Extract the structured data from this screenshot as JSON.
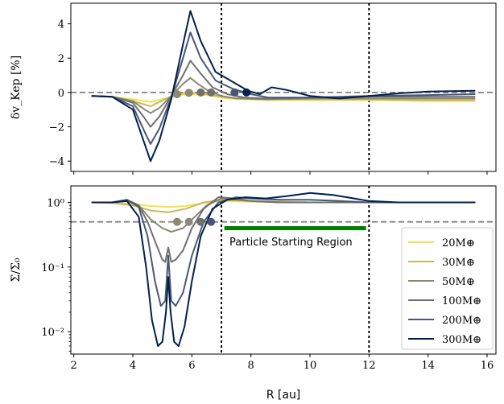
{
  "chart_data": [
    {
      "type": "line",
      "panel": "top",
      "ylabel": "δv_Kep [%]",
      "xlim": [
        1.9,
        16.3
      ],
      "ylim": [
        -4.6,
        5.2
      ],
      "yticks": [
        {
          "v": 4,
          "label": "4"
        },
        {
          "v": 2,
          "label": "2"
        },
        {
          "v": 0,
          "label": "0"
        },
        {
          "v": -2,
          "label": "−2"
        },
        {
          "v": -4,
          "label": "−4"
        }
      ],
      "xticks": [
        2,
        4,
        6,
        8,
        10,
        12,
        14,
        16
      ],
      "reference_lines": {
        "horizontal": 0,
        "vertical": [
          7,
          12
        ]
      },
      "series": [
        {
          "name": "20M⊕",
          "color": "#f2e34a",
          "x": [
            2.6,
            3.3,
            4.0,
            4.6,
            5.2,
            5.8,
            6.5,
            7.2,
            8.5,
            10,
            12,
            14,
            15.6
          ],
          "y": [
            -0.2,
            -0.25,
            -0.4,
            -0.55,
            -0.3,
            -0.1,
            -0.15,
            -0.35,
            -0.45,
            -0.45,
            -0.45,
            -0.5,
            -0.5
          ]
        },
        {
          "name": "30M⊕",
          "color": "#cbb763",
          "x": [
            2.6,
            3.3,
            4.0,
            4.6,
            5.2,
            5.8,
            6.5,
            7.2,
            8.5,
            10,
            12,
            14,
            15.6
          ],
          "y": [
            -0.2,
            -0.25,
            -0.5,
            -0.8,
            -0.3,
            0.0,
            -0.1,
            -0.3,
            -0.4,
            -0.4,
            -0.4,
            -0.45,
            -0.45
          ]
        },
        {
          "name": "50M⊕",
          "color": "#8b8874",
          "x": [
            2.6,
            3.3,
            4.0,
            4.4,
            4.6,
            4.9,
            5.3,
            5.7,
            5.95,
            6.2,
            6.6,
            7.0,
            7.5,
            8.5,
            10,
            12,
            14,
            15.6
          ],
          "y": [
            -0.2,
            -0.25,
            -0.5,
            -1.0,
            -1.2,
            -0.9,
            -0.2,
            0.5,
            0.85,
            0.5,
            0.05,
            -0.2,
            -0.35,
            -0.4,
            -0.35,
            -0.35,
            -0.35,
            -0.35
          ]
        },
        {
          "name": "100M⊕",
          "color": "#6f6f6f",
          "x": [
            2.6,
            3.3,
            4.0,
            4.4,
            4.6,
            4.9,
            5.3,
            5.7,
            5.95,
            6.3,
            6.7,
            7.2,
            7.8,
            8.5,
            10,
            12,
            14,
            15.6
          ],
          "y": [
            -0.2,
            -0.25,
            -0.6,
            -1.5,
            -2.0,
            -1.4,
            -0.2,
            1.0,
            1.85,
            1.1,
            0.3,
            -0.1,
            -0.3,
            -0.35,
            -0.3,
            -0.25,
            -0.25,
            -0.25
          ]
        },
        {
          "name": "200M⊕",
          "color": "#4a5675",
          "x": [
            2.6,
            3.3,
            4.0,
            4.4,
            4.6,
            4.9,
            5.3,
            5.7,
            5.95,
            6.3,
            6.8,
            7.4,
            8.0,
            8.6,
            10,
            12,
            14,
            15.6
          ],
          "y": [
            -0.2,
            -0.25,
            -0.8,
            -2.3,
            -3.0,
            -2.1,
            -0.3,
            2.0,
            3.5,
            2.0,
            0.7,
            0.2,
            -0.1,
            -0.3,
            -0.3,
            -0.2,
            -0.15,
            -0.1
          ]
        },
        {
          "name": "300M⊕",
          "color": "#002050",
          "x": [
            2.6,
            3.3,
            4.0,
            4.4,
            4.6,
            4.9,
            5.3,
            5.7,
            5.95,
            6.3,
            6.8,
            7.4,
            7.9,
            8.3,
            8.7,
            9.2,
            10.0,
            11.0,
            12.0,
            13.0,
            14.0,
            15.6
          ],
          "y": [
            -0.2,
            -0.25,
            -1.0,
            -3.0,
            -4.0,
            -2.8,
            -0.4,
            2.8,
            4.75,
            3.0,
            1.2,
            0.6,
            0.1,
            -0.1,
            0.3,
            0.15,
            -0.2,
            -0.35,
            -0.2,
            -0.05,
            0.05,
            0.1
          ]
        }
      ],
      "markers": [
        {
          "x": 5.5,
          "y": -0.1,
          "color": "#8b8874"
        },
        {
          "x": 5.9,
          "y": -0.02,
          "color": "#8b8874"
        },
        {
          "x": 6.3,
          "y": 0.0,
          "color": "#6f6f6f"
        },
        {
          "x": 6.65,
          "y": 0.0,
          "color": "#6f6f6f"
        },
        {
          "x": 7.45,
          "y": 0.0,
          "color": "#4a5675"
        },
        {
          "x": 7.85,
          "y": 0.0,
          "color": "#002050"
        }
      ]
    },
    {
      "type": "line",
      "panel": "bottom",
      "yscale": "log",
      "ylabel": "Σ/Σ₀",
      "xlabel": "R [au]",
      "xlim": [
        1.9,
        16.3
      ],
      "ylim": [
        0.0045,
        1.8
      ],
      "yticks": [
        {
          "v": 1,
          "label": "10⁰"
        },
        {
          "v": 0.1,
          "label": "10⁻¹"
        },
        {
          "v": 0.01,
          "label": "10⁻²"
        }
      ],
      "xticks": [
        2,
        4,
        6,
        8,
        10,
        12,
        14,
        16
      ],
      "reference_lines": {
        "horizontal": 0.5,
        "vertical": [
          7,
          12
        ]
      },
      "annotation": {
        "text": "Particle Starting Region",
        "x_start": 7.1,
        "x_end": 11.9,
        "y": 0.4,
        "color": "#008000"
      },
      "legend": {
        "position": "lower-right"
      },
      "series": [
        {
          "name": "20M⊕",
          "color": "#f2e34a",
          "x": [
            2.6,
            3.3,
            4.0,
            4.6,
            5.2,
            5.8,
            6.4,
            7.0,
            8.0,
            10,
            12,
            14,
            15.6
          ],
          "y": [
            1.0,
            0.98,
            0.95,
            0.88,
            0.85,
            0.88,
            0.98,
            1.05,
            1.02,
            1.0,
            1.0,
            1.0,
            1.0
          ]
        },
        {
          "name": "30M⊕",
          "color": "#cbb763",
          "x": [
            2.6,
            3.3,
            4.0,
            4.6,
            5.2,
            5.8,
            6.4,
            7.0,
            8.0,
            10,
            12,
            14,
            15.6
          ],
          "y": [
            1.0,
            0.98,
            0.9,
            0.75,
            0.7,
            0.8,
            1.0,
            1.1,
            1.05,
            1.0,
            1.0,
            1.0,
            1.0
          ]
        },
        {
          "name": "50M⊕",
          "color": "#8b8874",
          "x": [
            2.6,
            3.3,
            3.8,
            4.2,
            4.6,
            5.0,
            5.3,
            5.7,
            6.1,
            6.5,
            7.0,
            7.5,
            8.0,
            9.0,
            10,
            12,
            14,
            15.6
          ],
          "y": [
            1.0,
            1.0,
            1.05,
            0.9,
            0.55,
            0.4,
            0.35,
            0.4,
            0.6,
            0.9,
            1.15,
            1.1,
            1.05,
            1.0,
            1.0,
            1.0,
            1.0,
            1.0
          ]
        },
        {
          "name": "100M⊕",
          "color": "#6f6f6f",
          "x": [
            2.6,
            3.3,
            3.8,
            4.2,
            4.5,
            4.8,
            5.0,
            5.1,
            5.2,
            5.3,
            5.45,
            5.7,
            6.0,
            6.4,
            6.9,
            7.5,
            8.0,
            9.0,
            10,
            12,
            14,
            15.6
          ],
          "y": [
            1.0,
            1.0,
            1.1,
            0.9,
            0.5,
            0.22,
            0.13,
            0.12,
            0.2,
            0.12,
            0.13,
            0.18,
            0.4,
            0.8,
            1.2,
            1.15,
            1.05,
            1.0,
            1.0,
            1.0,
            1.0,
            1.0
          ]
        },
        {
          "name": "200M⊕",
          "color": "#4a5675",
          "x": [
            2.6,
            3.3,
            3.8,
            4.2,
            4.5,
            4.75,
            4.95,
            5.1,
            5.2,
            5.3,
            5.45,
            5.7,
            6.0,
            6.4,
            6.9,
            7.5,
            8.0,
            9.0,
            10,
            11,
            12,
            14,
            15.6
          ],
          "y": [
            1.0,
            1.0,
            1.1,
            0.85,
            0.3,
            0.06,
            0.025,
            0.03,
            0.15,
            0.03,
            0.025,
            0.04,
            0.15,
            0.5,
            1.0,
            1.2,
            1.15,
            1.1,
            1.1,
            1.05,
            1.0,
            1.0,
            1.0
          ]
        },
        {
          "name": "300M⊕",
          "color": "#002050",
          "x": [
            2.6,
            3.3,
            3.8,
            4.2,
            4.45,
            4.65,
            4.85,
            5.0,
            5.12,
            5.2,
            5.28,
            5.4,
            5.55,
            5.75,
            6.0,
            6.3,
            6.7,
            7.2,
            7.8,
            8.5,
            9.2,
            10.0,
            10.8,
            11.5,
            12.0,
            13,
            14,
            15.6
          ],
          "y": [
            1.0,
            1.0,
            1.05,
            0.6,
            0.1,
            0.015,
            0.006,
            0.007,
            0.02,
            0.07,
            0.02,
            0.007,
            0.006,
            0.012,
            0.06,
            0.3,
            0.8,
            1.1,
            1.2,
            1.15,
            1.25,
            1.4,
            1.3,
            1.15,
            1.05,
            1.0,
            1.0,
            1.0
          ]
        }
      ],
      "markers": [
        {
          "x": 5.5,
          "y": 0.5,
          "color": "#8b8874"
        },
        {
          "x": 5.9,
          "y": 0.5,
          "color": "#8b8874"
        },
        {
          "x": 6.3,
          "y": 0.5,
          "color": "#6f6f6f"
        },
        {
          "x": 6.65,
          "y": 0.5,
          "color": "#4a5675"
        }
      ]
    }
  ]
}
